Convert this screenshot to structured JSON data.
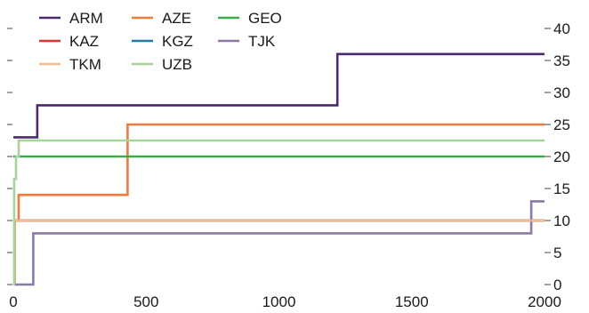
{
  "chart_data": {
    "type": "line",
    "step": true,
    "title": "",
    "xlabel": "",
    "ylabel": "",
    "xlim": [
      0,
      2000
    ],
    "ylim": [
      0,
      40
    ],
    "x_ticks": [
      0,
      500,
      1000,
      1500,
      2000
    ],
    "x_tick_labels": [
      "0",
      "500",
      "1000",
      "1500",
      "2000"
    ],
    "y_ticks": [
      0,
      5,
      10,
      15,
      20,
      25,
      30,
      35,
      40
    ],
    "y_tick_labels": [
      "0",
      "5",
      "10",
      "15",
      "20",
      "25",
      "30",
      "35",
      "40"
    ],
    "y_axis_side": "right",
    "grid": false,
    "legend_position": "top-left",
    "series": [
      {
        "name": "ARM",
        "color": "#4b2a6e",
        "points": [
          [
            0,
            23
          ],
          [
            90,
            23
          ],
          [
            90,
            28
          ],
          [
            1220,
            28
          ],
          [
            1220,
            36
          ],
          [
            2000,
            36
          ]
        ]
      },
      {
        "name": "AZE",
        "color": "#ef7a3c",
        "points": [
          [
            0,
            0
          ],
          [
            5,
            0
          ],
          [
            5,
            10
          ],
          [
            20,
            10
          ],
          [
            20,
            14
          ],
          [
            430,
            14
          ],
          [
            430,
            25
          ],
          [
            2000,
            25
          ]
        ]
      },
      {
        "name": "GEO",
        "color": "#3aaa4a",
        "points": [
          [
            0,
            20
          ],
          [
            2000,
            20
          ]
        ]
      },
      {
        "name": "KAZ",
        "color": "#e8322e",
        "points": [
          [
            0,
            10
          ],
          [
            2000,
            10
          ]
        ]
      },
      {
        "name": "KGZ",
        "color": "#1f7ea6",
        "points": [
          [
            0,
            10
          ],
          [
            2000,
            10
          ]
        ]
      },
      {
        "name": "TJK",
        "color": "#8c7aa6",
        "points": [
          [
            0,
            0
          ],
          [
            75,
            0
          ],
          [
            75,
            8
          ],
          [
            1950,
            8
          ],
          [
            1950,
            13
          ],
          [
            2000,
            13
          ]
        ]
      },
      {
        "name": "TKM",
        "color": "#f5b990",
        "points": [
          [
            0,
            10
          ],
          [
            2000,
            10
          ]
        ]
      },
      {
        "name": "UZB",
        "color": "#a6d49a",
        "points": [
          [
            0,
            0
          ],
          [
            3,
            0
          ],
          [
            3,
            16.5
          ],
          [
            10,
            16.5
          ],
          [
            10,
            20
          ],
          [
            20,
            20
          ],
          [
            20,
            22.5
          ],
          [
            2000,
            22.5
          ]
        ]
      }
    ],
    "legend_rows": [
      [
        "ARM",
        "AZE",
        "GEO"
      ],
      [
        "KAZ",
        "KGZ",
        "TJK"
      ],
      [
        "TKM",
        "UZB"
      ]
    ]
  }
}
